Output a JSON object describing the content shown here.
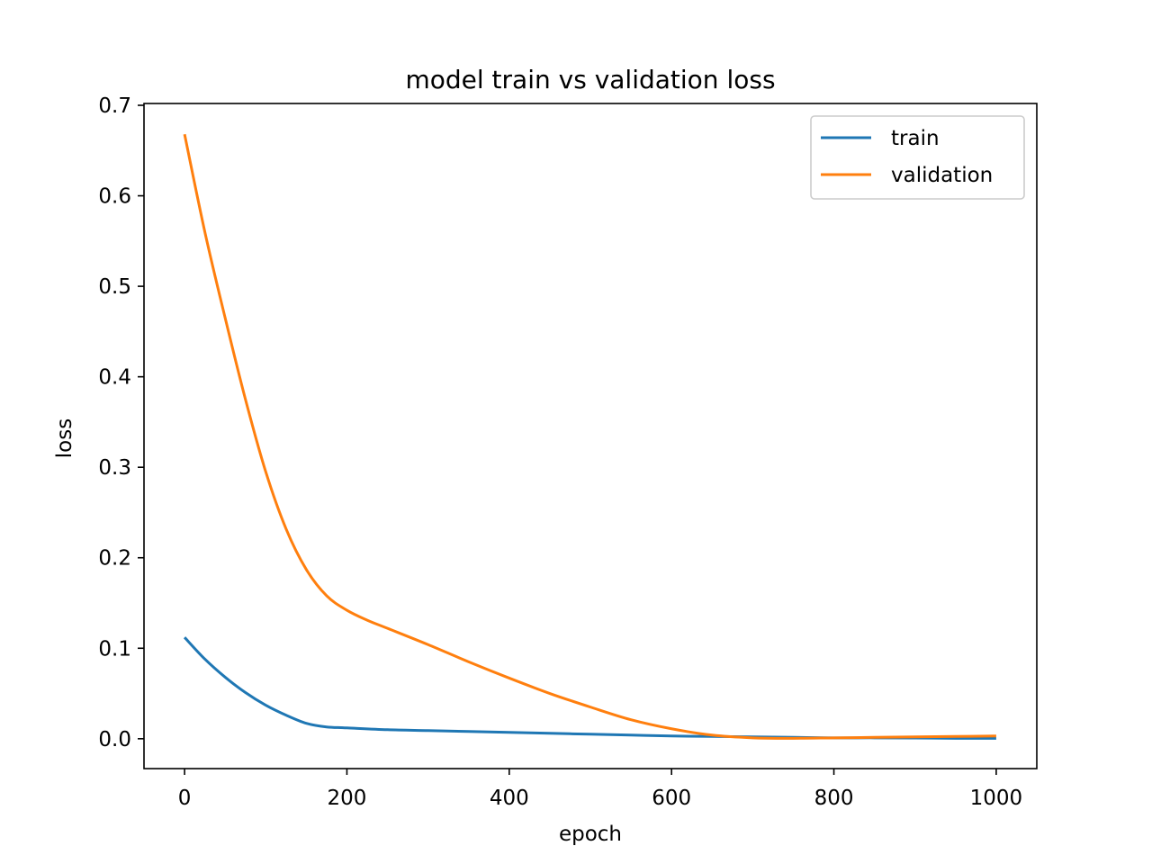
{
  "chart_data": {
    "type": "line",
    "title": "model train vs validation loss",
    "xlabel": "epoch",
    "ylabel": "loss",
    "xlim": [
      -50,
      1050
    ],
    "ylim": [
      -0.033,
      0.702
    ],
    "xticks": [
      0,
      200,
      400,
      600,
      800,
      1000
    ],
    "xtick_labels": [
      "0",
      "200",
      "400",
      "600",
      "800",
      "1000"
    ],
    "yticks": [
      0.0,
      0.1,
      0.2,
      0.3,
      0.4,
      0.5,
      0.6,
      0.7
    ],
    "ytick_labels": [
      "0.0",
      "0.1",
      "0.2",
      "0.3",
      "0.4",
      "0.5",
      "0.6",
      "0.7"
    ],
    "grid": false,
    "legend_position": "top-right",
    "series": [
      {
        "name": "train",
        "color": "#1f77b4",
        "x": [
          0,
          25,
          50,
          75,
          100,
          125,
          150,
          175,
          200,
          250,
          300,
          350,
          400,
          450,
          500,
          550,
          600,
          650,
          700,
          750,
          800,
          850,
          900,
          950,
          1000
        ],
        "y": [
          0.112,
          0.088,
          0.068,
          0.051,
          0.037,
          0.026,
          0.017,
          0.013,
          0.012,
          0.01,
          0.009,
          0.008,
          0.007,
          0.006,
          0.005,
          0.004,
          0.003,
          0.0025,
          0.002,
          0.0015,
          0.001,
          0.001,
          0.0008,
          0.0005,
          0.0005
        ]
      },
      {
        "name": "validation",
        "color": "#ff7f0e",
        "x": [
          0,
          25,
          50,
          75,
          100,
          125,
          150,
          175,
          200,
          225,
          250,
          300,
          350,
          400,
          450,
          500,
          550,
          600,
          650,
          700,
          750,
          800,
          850,
          900,
          950,
          1000
        ],
        "y": [
          0.668,
          0.56,
          0.465,
          0.375,
          0.295,
          0.232,
          0.187,
          0.158,
          0.142,
          0.131,
          0.122,
          0.104,
          0.085,
          0.067,
          0.05,
          0.035,
          0.021,
          0.011,
          0.004,
          0.001,
          0.0005,
          0.001,
          0.0015,
          0.002,
          0.0025,
          0.003
        ]
      }
    ]
  }
}
